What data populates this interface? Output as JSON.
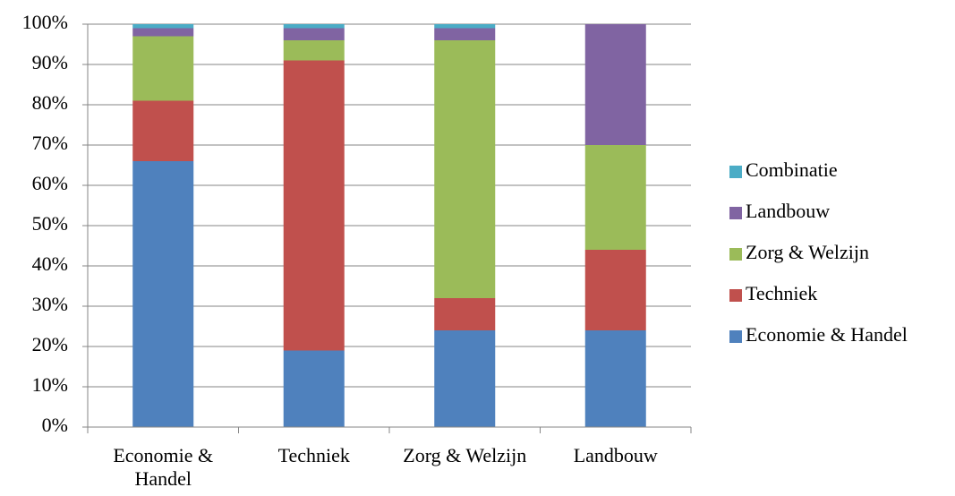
{
  "chart_data": {
    "type": "stacked-bar",
    "categories": [
      "Economie & Handel",
      "Techniek",
      "Zorg & Welzijn",
      "Landbouw"
    ],
    "series": [
      {
        "name": "Economie & Handel",
        "color": "#4f81bd",
        "values": [
          66,
          19,
          24,
          24
        ]
      },
      {
        "name": "Techniek",
        "color": "#c0504d",
        "values": [
          15,
          72,
          8,
          20
        ]
      },
      {
        "name": "Zorg & Welzijn",
        "color": "#9bbb59",
        "values": [
          16,
          5,
          64,
          26
        ]
      },
      {
        "name": "Landbouw",
        "color": "#8064a2",
        "values": [
          2,
          3,
          3,
          30
        ]
      },
      {
        "name": "Combinatie",
        "color": "#4bacc6",
        "values": [
          1,
          1,
          1,
          0
        ]
      }
    ],
    "ylim": [
      0,
      100
    ],
    "yticks": [
      {
        "value": 0,
        "label": "0%"
      },
      {
        "value": 10,
        "label": "10%"
      },
      {
        "value": 20,
        "label": "20%"
      },
      {
        "value": 30,
        "label": "30%"
      },
      {
        "value": 40,
        "label": "40%"
      },
      {
        "value": 50,
        "label": "50%"
      },
      {
        "value": 60,
        "label": "60%"
      },
      {
        "value": 70,
        "label": "70%"
      },
      {
        "value": 80,
        "label": "80%"
      },
      {
        "value": 90,
        "label": "90%"
      },
      {
        "value": 100,
        "label": "100%"
      }
    ],
    "grid": true
  }
}
